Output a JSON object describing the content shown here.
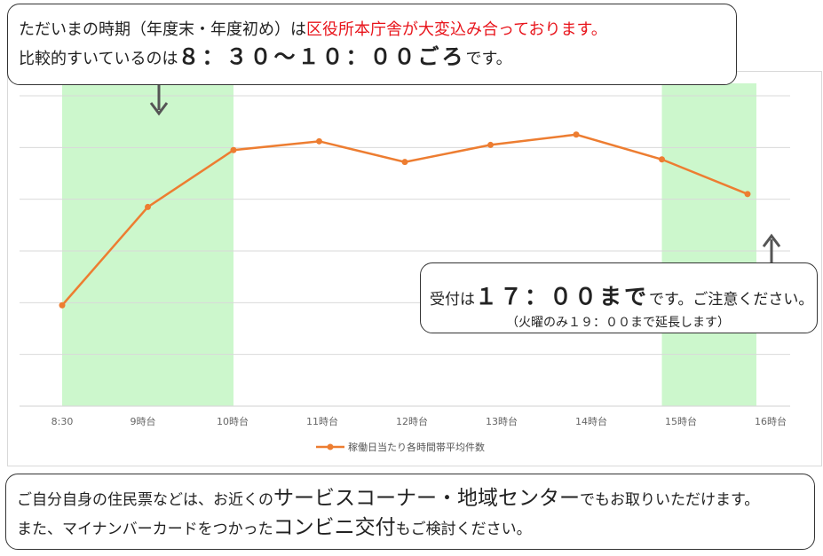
{
  "top_note": {
    "line1_prefix": "ただいまの時期（年度末・年度初め）は",
    "line1_highlight": "区役所本庁舎が大変込み合っております。",
    "line2_prefix": "比較的すいているのは",
    "line2_big": "８：３０～１０：００ごろ",
    "line2_suffix": "です。"
  },
  "hours_note": {
    "prefix": "受付は",
    "big": "１７：００まで",
    "suffix": "です。ご注意ください。",
    "sub": "（火曜のみ１９：００まで延長します）"
  },
  "bottom_note": {
    "line1_prefix": "ご自分自身の住民票などは、お近くの",
    "line1_big": "サービスコーナー・地域センター",
    "line1_suffix": "でもお取りいただけます。",
    "line2_prefix": "また、マイナンバーカードをつかった",
    "line2_big": "コンビニ交付",
    "line2_suffix": "もご検討ください。"
  },
  "chart_data": {
    "type": "line",
    "categories": [
      "8:30",
      "9時台",
      "10時台",
      "11時台",
      "12時台",
      "13時台",
      "14時台",
      "15時台",
      "16時台"
    ],
    "series": [
      {
        "name": "稼働日当たり各時間帯平均件数",
        "values": [
          1.95,
          3.85,
          4.95,
          5.12,
          4.72,
          5.05,
          5.25,
          4.77,
          4.1
        ]
      }
    ],
    "ylim": [
      0,
      6
    ],
    "y_gridlines": 6,
    "y_tick_labels_shown": false,
    "grid": true,
    "legend": "bottom",
    "highlight_bands": [
      {
        "from": "8:30",
        "to": "10時台",
        "meaning": "比較的すいている時間帯"
      },
      {
        "from": "15時台",
        "to": "16時台"
      }
    ],
    "colors": {
      "line": "#ed7d31",
      "band": "#ccf7cc",
      "grid": "#d9d9d9"
    }
  }
}
